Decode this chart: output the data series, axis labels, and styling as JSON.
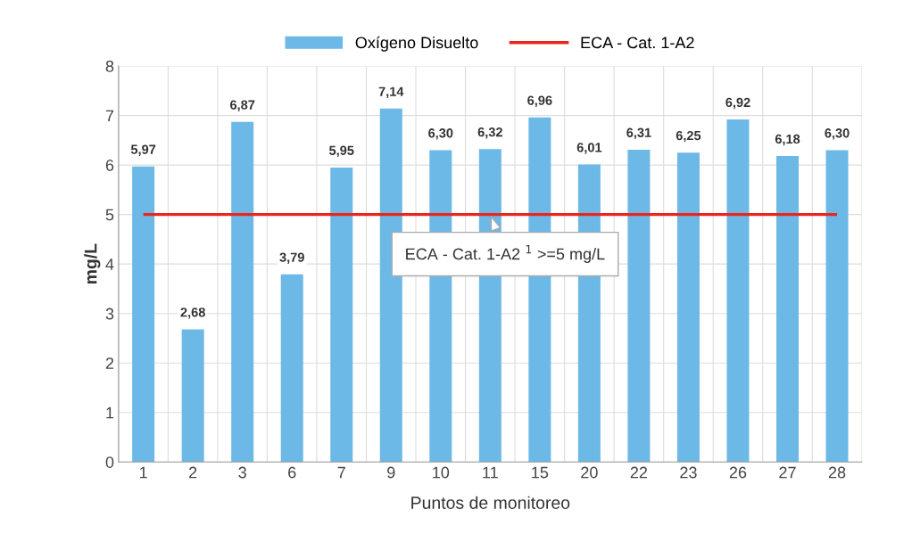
{
  "chart_data": {
    "type": "bar",
    "xlabel": "Puntos de monitoreo",
    "ylabel": "mg/L",
    "categories": [
      "1",
      "2",
      "3",
      "6",
      "7",
      "9",
      "10",
      "11",
      "15",
      "20",
      "22",
      "23",
      "26",
      "27",
      "28"
    ],
    "series": [
      {
        "name": "Oxígeno Disuelto",
        "color": "#6cb8e6",
        "values": [
          5.97,
          2.68,
          6.87,
          3.79,
          5.95,
          7.14,
          6.3,
          6.32,
          6.96,
          6.01,
          6.31,
          6.25,
          6.92,
          6.18,
          6.3
        ],
        "value_labels": [
          "5,97",
          "2,68",
          "6,87",
          "3,79",
          "5,95",
          "7,14",
          "6,30",
          "6,32",
          "6,96",
          "6,01",
          "6,31",
          "6,25",
          "6,92",
          "6,18",
          "6,30"
        ]
      }
    ],
    "ref_lines": [
      {
        "axis": "y",
        "value": 5,
        "label": "ECA - Cat. 1-A2",
        "color": "#e8261f",
        "line_style": "solid"
      }
    ],
    "annotations": [
      {
        "text": "ECA - Cat. 1-A2 $^{1}$ >=5 mg/L",
        "x": "11",
        "y": 5
      }
    ],
    "ylim": [
      0,
      8
    ],
    "yticks": [
      0,
      1,
      2,
      3,
      4,
      5,
      6,
      7,
      8
    ],
    "grid": true,
    "legend": "top"
  }
}
